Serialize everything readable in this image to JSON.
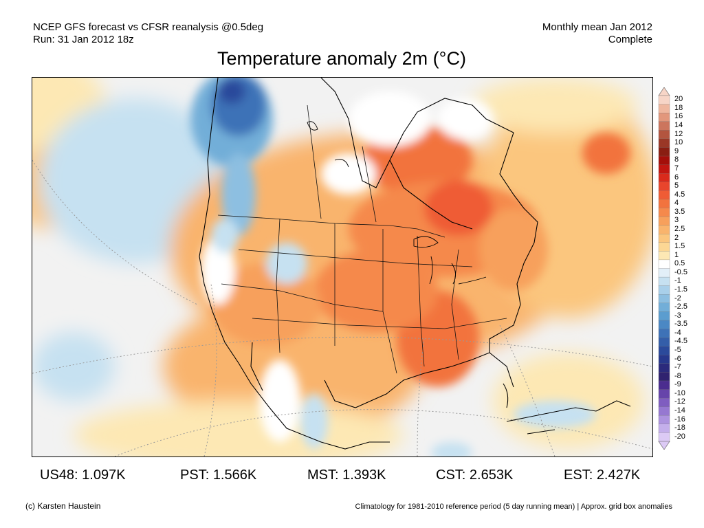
{
  "header": {
    "line1_left": "NCEP GFS forecast vs CFSR reanalysis @0.5deg",
    "line2_left": "Run: 31 Jan 2012 18z",
    "line1_right": "Monthly mean Jan 2012",
    "line2_right": "Complete"
  },
  "title": "Temperature anomaly 2m (°C)",
  "colorbar": {
    "labels": [
      "20",
      "18",
      "16",
      "14",
      "12",
      "10",
      "9",
      "8",
      "7",
      "6",
      "5",
      "4.5",
      "4",
      "3.5",
      "3",
      "2.5",
      "2",
      "1.5",
      "1",
      "0.5",
      "-0.5",
      "-1",
      "-1.5",
      "-2",
      "-2.5",
      "-3",
      "-3.5",
      "-4",
      "-4.5",
      "-5",
      "-6",
      "-7",
      "-8",
      "-9",
      "-10",
      "-12",
      "-14",
      "-16",
      "-18",
      "-20"
    ],
    "colors": [
      "#f7d5c7",
      "#efb79f",
      "#e2977c",
      "#cc755d",
      "#b3553f",
      "#9a3726",
      "#8a1e12",
      "#a40f0a",
      "#c11611",
      "#d92a1c",
      "#e8452c",
      "#ef5c35",
      "#f2733e",
      "#f5894c",
      "#f7a05c",
      "#f9b46d",
      "#fbc67e",
      "#fcd794",
      "#fde8b4",
      "#ffffff",
      "#e2eff8",
      "#c6e1f1",
      "#a9d0ea",
      "#8dbfe1",
      "#72aed8",
      "#5b9dcf",
      "#4b88c4",
      "#3e72b7",
      "#345ea9",
      "#2b4a9b",
      "#27388c",
      "#2b2a7c",
      "#30226f",
      "#4b2d8f",
      "#6644aa",
      "#7f5dc0",
      "#9678d1",
      "#ad93df",
      "#c4afeb",
      "#dccaf5"
    ]
  },
  "stats": [
    {
      "region": "US48",
      "value": "1.097K"
    },
    {
      "region": "PST",
      "value": "1.566K"
    },
    {
      "region": "MST",
      "value": "1.393K"
    },
    {
      "region": "CST",
      "value": "2.653K"
    },
    {
      "region": "EST",
      "value": "2.427K"
    }
  ],
  "footer": {
    "credit": "(c) Karsten Haustein",
    "climatology": "Climatology for 1981-2010 reference period (5 day running mean) | Approx. grid box anomalies"
  }
}
